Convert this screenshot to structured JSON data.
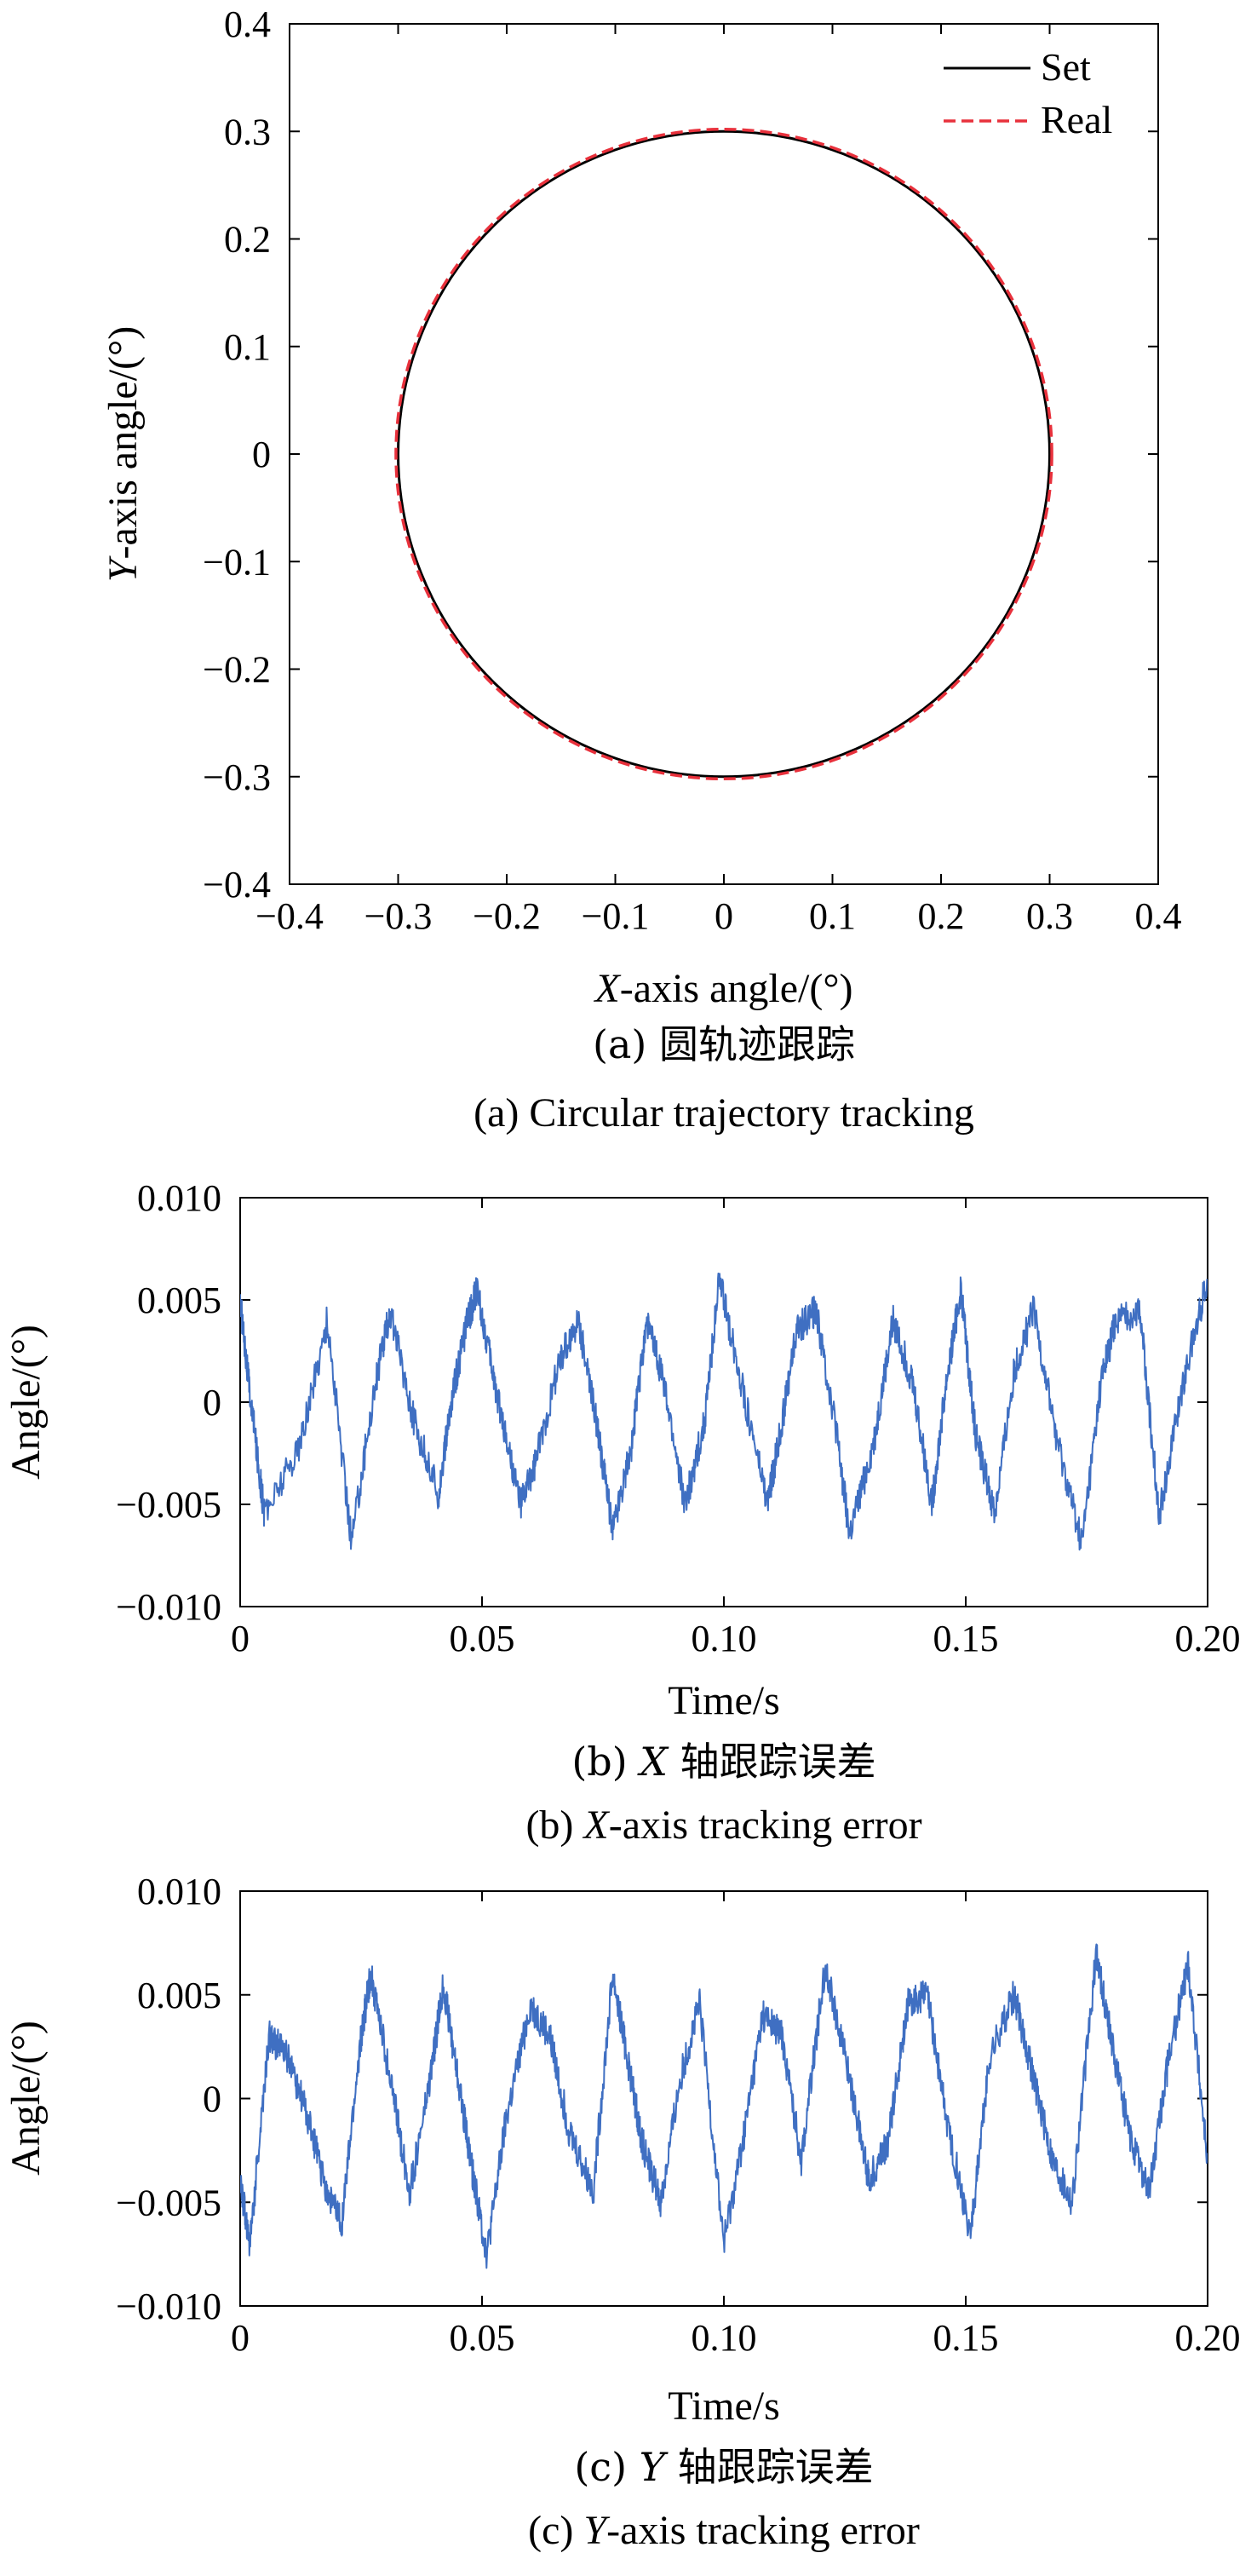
{
  "charts": [
    {
      "id": "a",
      "caption_cn": "(a) 圆轨迹跟踪",
      "caption_en": "(a) Circular trajectory tracking",
      "xlabel": {
        "italic": "X",
        "rest": "-axis angle/(°)"
      },
      "ylabel": {
        "italic": "Y",
        "rest": "-axis angle/(°)"
      }
    },
    {
      "id": "b",
      "caption_cn": {
        "pre": "(b) ",
        "italic": "X",
        "post": " 轴跟踪误差"
      },
      "caption_en": {
        "pre": "(b) ",
        "italic": "X",
        "post": "-axis tracking error"
      },
      "xlabel": "Time/s",
      "ylabel": "Angle/(°)"
    },
    {
      "id": "c",
      "caption_cn": {
        "pre": "(c) ",
        "italic": "Y",
        "post": " 轴跟踪误差"
      },
      "caption_en": {
        "pre": "(c) ",
        "italic": "Y",
        "post": "-axis tracking error"
      },
      "xlabel": "Time/s",
      "ylabel": "Angle/(°)"
    }
  ],
  "chart_data": [
    {
      "type": "line",
      "subtype": "parametric-xy",
      "xlim": [
        -0.4,
        0.4
      ],
      "ylim": [
        -0.4,
        0.4
      ],
      "xticks": [
        -0.4,
        -0.3,
        -0.2,
        -0.1,
        0,
        0.1,
        0.2,
        0.3,
        0.4
      ],
      "yticks": [
        -0.4,
        -0.3,
        -0.2,
        -0.1,
        0,
        0.1,
        0.2,
        0.3,
        0.4
      ],
      "xtick_labels": [
        "−0.4",
        "−0.3",
        "−0.2",
        "−0.1",
        "0",
        "0.1",
        "0.2",
        "0.3",
        "0.4"
      ],
      "ytick_labels": [
        "−0.4",
        "−0.3",
        "−0.2",
        "−0.1",
        "0",
        "0.1",
        "0.2",
        "0.3",
        "0.4"
      ],
      "legend": "top-right",
      "grid": false,
      "series": [
        {
          "name": "Set",
          "shape": "circle",
          "center": [
            0,
            0
          ],
          "radius": 0.3,
          "color": "#000000",
          "dash": "solid"
        },
        {
          "name": "Real",
          "shape": "circle",
          "center": [
            0,
            0
          ],
          "radius": 0.302,
          "color": "#e8313c",
          "dash": "dashed"
        }
      ]
    },
    {
      "type": "line",
      "xlim": [
        0,
        0.2
      ],
      "ylim": [
        -0.01,
        0.01
      ],
      "xticks": [
        0,
        0.05,
        0.1,
        0.15,
        0.2
      ],
      "yticks": [
        -0.01,
        -0.005,
        0,
        0.005,
        0.01
      ],
      "xtick_labels": [
        "0",
        "0.05",
        "0.10",
        "0.15",
        "0.20"
      ],
      "ytick_labels": [
        "−0.010",
        "−0.005",
        "0",
        "0.005",
        "0.010"
      ],
      "grid": false,
      "series": [
        {
          "color": "#3f6fc2",
          "x": [
            0,
            0.002,
            0.005,
            0.0125,
            0.018,
            0.023,
            0.028,
            0.031,
            0.036,
            0.041,
            0.044,
            0.047,
            0.049,
            0.053,
            0.058,
            0.061,
            0.066,
            0.07,
            0.074,
            0.077,
            0.081,
            0.084,
            0.087,
            0.092,
            0.096,
            0.099,
            0.104,
            0.109,
            0.112,
            0.115,
            0.119,
            0.123,
            0.126,
            0.131,
            0.135,
            0.139,
            0.143,
            0.146,
            0.149,
            0.152,
            0.156,
            0.16,
            0.164,
            0.169,
            0.174,
            0.178,
            0.181,
            0.186,
            0.19,
            0.195,
            0.2
          ],
          "y": [
            0.005,
            0.0005,
            -0.0055,
            -0.002,
            0.004,
            -0.0068,
            0.001,
            0.0045,
            -0.001,
            -0.0045,
            0.0005,
            0.004,
            0.0055,
            0.0005,
            -0.005,
            -0.003,
            0.002,
            0.004,
            -0.0015,
            -0.0062,
            -0.002,
            0.004,
            0.0015,
            -0.005,
            -0.001,
            0.006,
            0.0005,
            -0.005,
            -0.001,
            0.0035,
            0.0045,
            -0.001,
            -0.0065,
            -0.002,
            0.004,
            0.001,
            -0.005,
            0.001,
            0.0055,
            -0.0015,
            -0.0055,
            0.0015,
            0.0045,
            -0.002,
            -0.007,
            0.001,
            0.004,
            0.0045,
            -0.0055,
            0.001,
            0.006
          ]
        }
      ]
    },
    {
      "type": "line",
      "xlim": [
        0,
        0.2
      ],
      "ylim": [
        -0.01,
        0.01
      ],
      "xticks": [
        0,
        0.05,
        0.1,
        0.15,
        0.2
      ],
      "yticks": [
        -0.01,
        -0.005,
        0,
        0.005,
        0.01
      ],
      "xtick_labels": [
        "0",
        "0.05",
        "0.10",
        "0.15",
        "0.20"
      ],
      "ytick_labels": [
        "−0.010",
        "−0.005",
        "0",
        "0.005",
        "0.010"
      ],
      "grid": false,
      "series": [
        {
          "color": "#3f6fc2",
          "x": [
            0,
            0.002,
            0.006,
            0.01,
            0.014,
            0.018,
            0.021,
            0.025,
            0.027,
            0.031,
            0.035,
            0.039,
            0.042,
            0.045,
            0.048,
            0.051,
            0.055,
            0.06,
            0.064,
            0.068,
            0.073,
            0.077,
            0.08,
            0.083,
            0.087,
            0.091,
            0.095,
            0.1,
            0.104,
            0.108,
            0.112,
            0.116,
            0.121,
            0.126,
            0.13,
            0.134,
            0.138,
            0.142,
            0.146,
            0.151,
            0.155,
            0.16,
            0.164,
            0.168,
            0.172,
            0.177,
            0.18,
            0.184,
            0.188,
            0.192,
            0.196,
            0.2
          ],
          "y": [
            -0.004,
            -0.007,
            0.003,
            0.002,
            -0.001,
            -0.0045,
            -0.006,
            0.003,
            0.006,
            0.001,
            -0.0045,
            0.0005,
            0.0055,
            0.001,
            -0.0035,
            -0.0075,
            -0.001,
            0.0045,
            0.003,
            -0.0015,
            -0.0045,
            0.006,
            0.002,
            -0.002,
            -0.005,
            0.001,
            0.0045,
            -0.007,
            -0.002,
            0.004,
            0.003,
            -0.003,
            0.0065,
            0.001,
            -0.004,
            -0.002,
            0.0045,
            0.005,
            -0.001,
            -0.0065,
            0.002,
            0.005,
            0.001,
            -0.003,
            -0.005,
            0.007,
            0.003,
            -0.002,
            -0.0045,
            0.002,
            0.0065,
            -0.003
          ]
        }
      ]
    }
  ]
}
